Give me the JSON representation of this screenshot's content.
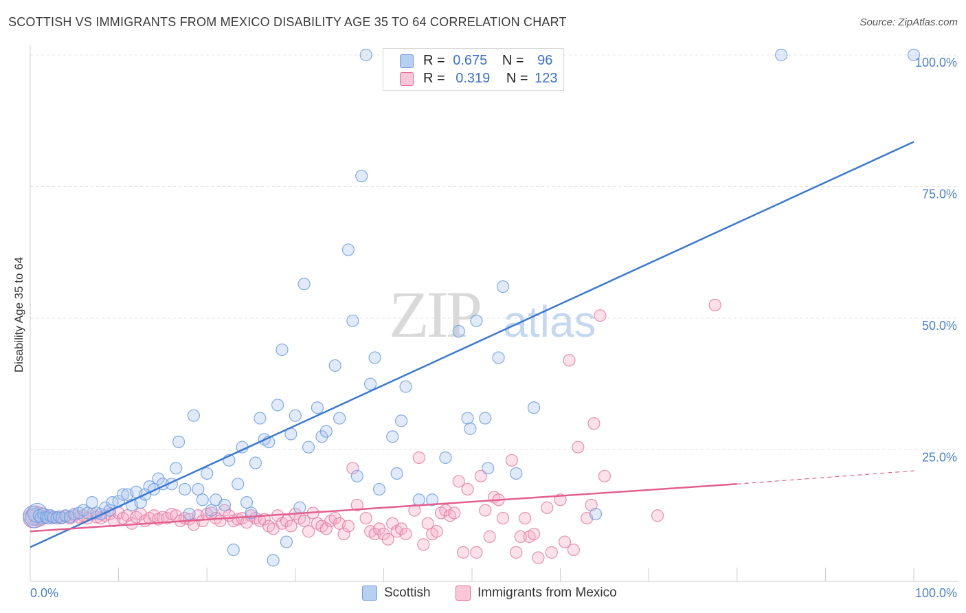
{
  "title": "SCOTTISH VS IMMIGRANTS FROM MEXICO DISABILITY AGE 35 TO 64 CORRELATION CHART",
  "source": "Source: ZipAtlas.com",
  "watermark": {
    "zip": "ZIP",
    "atlas": "atlas"
  },
  "legend": {
    "scottish": {
      "r_label": "R =",
      "r_value": "0.675",
      "n_label": "N =",
      "n_value": "96",
      "color": "#6f9fe0",
      "fill": "#a8c6f0"
    },
    "mexico": {
      "r_label": "R =",
      "r_value": "0.319",
      "n_label": "N =",
      "n_value": "123",
      "color": "#e86a95",
      "fill": "#f6b9cd"
    }
  },
  "bottom_legend": {
    "scottish": "Scottish",
    "mexico": "Immigrants from Mexico"
  },
  "chart_data": {
    "type": "scatter",
    "title": "SCOTTISH VS IMMIGRANTS FROM MEXICO DISABILITY AGE 35 TO 64 CORRELATION CHART",
    "xlabel": "",
    "ylabel": "Disability Age 35 to 64",
    "xlim": [
      0,
      100
    ],
    "ylim": [
      0,
      100
    ],
    "x_tick_labels": [
      "0.0%",
      "100.0%"
    ],
    "y_tick_labels": [
      "25.0%",
      "50.0%",
      "75.0%",
      "100.0%"
    ],
    "y_ticks": [
      25,
      50,
      75,
      100
    ],
    "grid": true,
    "series": [
      {
        "name": "Scottish",
        "color": "#3a78d4",
        "trend": {
          "x0": 0,
          "y0": 6.5,
          "x1": 100,
          "y1": 83.5
        },
        "points": [
          [
            0.3,
            12.5
          ],
          [
            0.5,
            12
          ],
          [
            0.8,
            13
          ],
          [
            1.0,
            12.5
          ],
          [
            1.2,
            12
          ],
          [
            1.5,
            12.8
          ],
          [
            1.8,
            12.2
          ],
          [
            2.0,
            12
          ],
          [
            2.3,
            12.5
          ],
          [
            2.6,
            12.2
          ],
          [
            3.0,
            12
          ],
          [
            3.3,
            12.3
          ],
          [
            3.6,
            12.1
          ],
          [
            4.0,
            12.5
          ],
          [
            4.5,
            12.2
          ],
          [
            5.0,
            12.8
          ],
          [
            5.5,
            13
          ],
          [
            6.0,
            13.5
          ],
          [
            6.5,
            13
          ],
          [
            7.0,
            15
          ],
          [
            7.5,
            13
          ],
          [
            8.0,
            12.8
          ],
          [
            8.5,
            14
          ],
          [
            9.0,
            13.5
          ],
          [
            9.3,
            15
          ],
          [
            10.0,
            15.2
          ],
          [
            10.5,
            16.5
          ],
          [
            11.0,
            16.5
          ],
          [
            11.5,
            14.5
          ],
          [
            12.0,
            17
          ],
          [
            12.5,
            15
          ],
          [
            13.0,
            16.5
          ],
          [
            13.5,
            18
          ],
          [
            14.0,
            17.5
          ],
          [
            14.5,
            19.5
          ],
          [
            15.0,
            18.5
          ],
          [
            16.0,
            18.5
          ],
          [
            16.5,
            21.5
          ],
          [
            16.8,
            26.5
          ],
          [
            17.5,
            17.5
          ],
          [
            18.0,
            12.8
          ],
          [
            18.5,
            31.5
          ],
          [
            19.0,
            17.5
          ],
          [
            19.5,
            15.5
          ],
          [
            20.0,
            20.5
          ],
          [
            20.5,
            13.5
          ],
          [
            21.0,
            15.5
          ],
          [
            22.0,
            14.5
          ],
          [
            22.5,
            23
          ],
          [
            23.0,
            6
          ],
          [
            23.5,
            18.5
          ],
          [
            24.0,
            25.5
          ],
          [
            24.5,
            15
          ],
          [
            25.0,
            13
          ],
          [
            25.5,
            22.5
          ],
          [
            26.0,
            31
          ],
          [
            26.5,
            27
          ],
          [
            27.0,
            26.5
          ],
          [
            27.5,
            4
          ],
          [
            28.0,
            33.5
          ],
          [
            28.5,
            44
          ],
          [
            29.0,
            7.5
          ],
          [
            29.5,
            28
          ],
          [
            30.0,
            31.5
          ],
          [
            30.5,
            14
          ],
          [
            31.0,
            56.5
          ],
          [
            31.5,
            25.5
          ],
          [
            32.5,
            33
          ],
          [
            33.0,
            27.5
          ],
          [
            33.5,
            28.5
          ],
          [
            34.5,
            41
          ],
          [
            35.0,
            31
          ],
          [
            36.0,
            63
          ],
          [
            36.5,
            49.5
          ],
          [
            37.0,
            20
          ],
          [
            37.5,
            77
          ],
          [
            38.0,
            100
          ],
          [
            38.5,
            37.5
          ],
          [
            39.0,
            42.5
          ],
          [
            39.5,
            17.5
          ],
          [
            41.0,
            27.5
          ],
          [
            41.5,
            20.5
          ],
          [
            42.0,
            30.5
          ],
          [
            42.5,
            37
          ],
          [
            44.0,
            15.5
          ],
          [
            45.5,
            15.5
          ],
          [
            47.0,
            23.5
          ],
          [
            48.5,
            47.5
          ],
          [
            49.5,
            31
          ],
          [
            49.8,
            29
          ],
          [
            50.5,
            49.5
          ],
          [
            51.5,
            31
          ],
          [
            51.8,
            21.5
          ],
          [
            53.0,
            42.5
          ],
          [
            53.5,
            56
          ],
          [
            55.0,
            20.5
          ],
          [
            57.0,
            33
          ],
          [
            64.0,
            12.8
          ],
          [
            85.0,
            100
          ],
          [
            100.0,
            100
          ]
        ]
      },
      {
        "name": "Immigrants from Mexico",
        "color": "#e25f8e",
        "trend": {
          "x0": 0,
          "y0": 9.5,
          "x1": 80,
          "y1": 18.5,
          "dash_x1": 100,
          "dash_y1": 21
        },
        "points": [
          [
            0.3,
            12
          ],
          [
            0.6,
            12.5
          ],
          [
            1.0,
            12.3
          ],
          [
            1.5,
            12
          ],
          [
            2.0,
            12.5
          ],
          [
            2.5,
            12
          ],
          [
            3.0,
            12.2
          ],
          [
            3.5,
            12
          ],
          [
            4.0,
            12.3
          ],
          [
            4.5,
            12
          ],
          [
            5.0,
            12.5
          ],
          [
            5.5,
            12.2
          ],
          [
            6.0,
            12.5
          ],
          [
            6.5,
            12
          ],
          [
            7.0,
            12.8
          ],
          [
            7.5,
            12.2
          ],
          [
            8.0,
            12
          ],
          [
            8.5,
            12.5
          ],
          [
            9.0,
            12.8
          ],
          [
            9.5,
            11.5
          ],
          [
            10.0,
            13
          ],
          [
            10.5,
            12
          ],
          [
            11.0,
            12.5
          ],
          [
            11.5,
            11
          ],
          [
            12.0,
            12.2
          ],
          [
            12.5,
            12.8
          ],
          [
            13.0,
            11.5
          ],
          [
            13.5,
            12
          ],
          [
            14.0,
            12.5
          ],
          [
            14.5,
            11.8
          ],
          [
            15.0,
            12.2
          ],
          [
            15.5,
            12
          ],
          [
            16.0,
            12.8
          ],
          [
            16.5,
            12.5
          ],
          [
            17.0,
            11.5
          ],
          [
            17.5,
            12
          ],
          [
            18.0,
            11.8
          ],
          [
            18.5,
            10.8
          ],
          [
            19.0,
            12.5
          ],
          [
            19.5,
            11.5
          ],
          [
            20.0,
            12.8
          ],
          [
            20.5,
            13
          ],
          [
            21.0,
            12
          ],
          [
            21.5,
            11.5
          ],
          [
            22.0,
            13.5
          ],
          [
            22.5,
            12.5
          ],
          [
            23.0,
            11.5
          ],
          [
            23.5,
            11.8
          ],
          [
            24.0,
            12
          ],
          [
            24.5,
            11.2
          ],
          [
            25.0,
            12.5
          ],
          [
            25.5,
            12
          ],
          [
            26.0,
            11.5
          ],
          [
            26.5,
            11.8
          ],
          [
            27.0,
            10.5
          ],
          [
            27.5,
            10
          ],
          [
            28.0,
            12.5
          ],
          [
            28.5,
            11
          ],
          [
            29.0,
            11.5
          ],
          [
            29.5,
            10.5
          ],
          [
            30.0,
            12.8
          ],
          [
            30.5,
            12
          ],
          [
            31.0,
            11.5
          ],
          [
            31.5,
            9.5
          ],
          [
            32.0,
            13
          ],
          [
            32.5,
            11
          ],
          [
            33.0,
            10.5
          ],
          [
            33.5,
            10
          ],
          [
            34.0,
            11.5
          ],
          [
            34.5,
            12
          ],
          [
            35.0,
            11
          ],
          [
            35.5,
            9
          ],
          [
            36.0,
            10.5
          ],
          [
            36.5,
            21.5
          ],
          [
            37.0,
            14.5
          ],
          [
            38.0,
            12
          ],
          [
            38.5,
            9.5
          ],
          [
            39.0,
            9
          ],
          [
            39.5,
            10
          ],
          [
            40.0,
            9
          ],
          [
            40.5,
            8
          ],
          [
            41.0,
            11
          ],
          [
            41.5,
            9.5
          ],
          [
            42.0,
            10
          ],
          [
            42.5,
            9
          ],
          [
            43.5,
            13.5
          ],
          [
            44.0,
            23.5
          ],
          [
            44.5,
            7
          ],
          [
            45.0,
            11
          ],
          [
            45.5,
            9
          ],
          [
            46.0,
            9.5
          ],
          [
            46.5,
            13
          ],
          [
            47.0,
            13.5
          ],
          [
            47.5,
            12.5
          ],
          [
            48.0,
            13
          ],
          [
            48.5,
            19
          ],
          [
            49.0,
            5.5
          ],
          [
            49.5,
            17.5
          ],
          [
            50.5,
            5.5
          ],
          [
            51.0,
            20
          ],
          [
            51.5,
            13.5
          ],
          [
            52.0,
            8.5
          ],
          [
            52.5,
            16
          ],
          [
            53.0,
            15.5
          ],
          [
            53.5,
            12
          ],
          [
            54.5,
            23
          ],
          [
            55.0,
            5.5
          ],
          [
            55.5,
            8.5
          ],
          [
            56.0,
            12
          ],
          [
            56.5,
            8.5
          ],
          [
            57.0,
            9
          ],
          [
            57.5,
            4.5
          ],
          [
            58.5,
            14
          ],
          [
            59.0,
            5.5
          ],
          [
            60.0,
            15.5
          ],
          [
            60.5,
            7.5
          ],
          [
            61.0,
            42
          ],
          [
            61.5,
            6
          ],
          [
            62.0,
            25.5
          ],
          [
            63.0,
            12
          ],
          [
            63.5,
            14.5
          ],
          [
            63.8,
            30
          ],
          [
            64.5,
            50.5
          ],
          [
            65.0,
            20
          ],
          [
            71.0,
            12.5
          ],
          [
            77.5,
            52.5
          ]
        ]
      }
    ]
  }
}
